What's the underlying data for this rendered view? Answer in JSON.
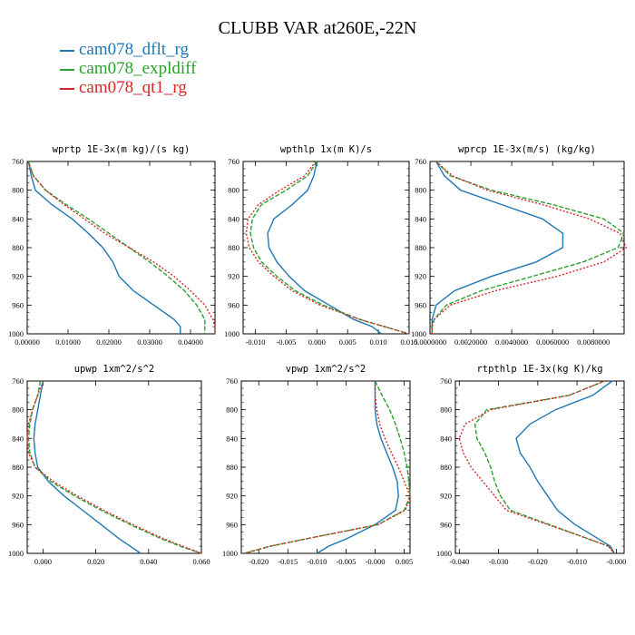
{
  "title": "CLUBB VAR at260E,-22N",
  "legend": [
    {
      "label": "cam078_dflt_rg",
      "color": "#1f77b4"
    },
    {
      "label": "cam078_expldiff",
      "color": "#2ca02c"
    },
    {
      "label": "cam078_qt1_rg",
      "color": "#d62728"
    }
  ],
  "chart_data": [
    {
      "type": "line",
      "title": "wprtp  1E-3x(m kg)/(s kg)",
      "xlim": [
        0.0,
        0.046
      ],
      "ylim": [
        760,
        1000
      ],
      "xticks": [
        "0.00000",
        "0.01000",
        "0.02000",
        "0.03000",
        "0.04000"
      ],
      "xtick_values": [
        0.0,
        0.01,
        0.02,
        0.03,
        0.04
      ],
      "yticks": [
        760,
        800,
        840,
        880,
        920,
        960,
        1000
      ],
      "y": [
        760,
        780,
        800,
        820,
        840,
        860,
        880,
        900,
        920,
        940,
        960,
        980,
        990,
        1000
      ],
      "series": [
        {
          "name": "cam078_dflt_rg",
          "values": [
            0.0003,
            0.001,
            0.002,
            0.006,
            0.011,
            0.015,
            0.0185,
            0.021,
            0.0225,
            0.026,
            0.031,
            0.036,
            0.0375,
            0.0375
          ]
        },
        {
          "name": "cam078_expldiff",
          "values": [
            0.0003,
            0.0015,
            0.0045,
            0.0095,
            0.015,
            0.02,
            0.025,
            0.03,
            0.0345,
            0.0385,
            0.0415,
            0.0435,
            0.0435,
            0.0435
          ]
        },
        {
          "name": "cam078_qt1_rg",
          "values": [
            0.0002,
            0.0015,
            0.0045,
            0.009,
            0.014,
            0.019,
            0.025,
            0.031,
            0.036,
            0.04,
            0.0435,
            0.0455,
            0.046,
            0.046
          ]
        }
      ]
    },
    {
      "type": "line",
      "title": "wpthlp  1x(m K)/s",
      "xlim": [
        -0.012,
        0.015
      ],
      "ylim": [
        760,
        1000
      ],
      "xticks": [
        "-0.010",
        "-0.005",
        "0.000",
        "0.005",
        "0.010",
        "0.015"
      ],
      "xtick_values": [
        -0.01,
        -0.005,
        0.0,
        0.005,
        0.01,
        0.015
      ],
      "yticks": [
        760,
        800,
        840,
        880,
        920,
        960,
        1000
      ],
      "y": [
        760,
        780,
        800,
        820,
        840,
        860,
        880,
        900,
        920,
        940,
        960,
        980,
        990,
        1000
      ],
      "series": [
        {
          "name": "cam078_dflt_rg",
          "values": [
            0.0,
            -0.0005,
            -0.0015,
            -0.004,
            -0.007,
            -0.008,
            -0.0078,
            -0.0065,
            -0.0045,
            -0.002,
            0.002,
            0.006,
            0.009,
            0.0105
          ]
        },
        {
          "name": "cam078_expldiff",
          "values": [
            0.0,
            -0.0015,
            -0.005,
            -0.009,
            -0.0105,
            -0.0108,
            -0.0103,
            -0.009,
            -0.0065,
            -0.0035,
            0.001,
            0.007,
            0.011,
            0.015
          ]
        },
        {
          "name": "cam078_qt1_rg",
          "values": [
            -0.0002,
            -0.002,
            -0.006,
            -0.0095,
            -0.0112,
            -0.0115,
            -0.011,
            -0.0095,
            -0.007,
            -0.004,
            0.0005,
            0.007,
            0.011,
            0.015
          ]
        }
      ]
    },
    {
      "type": "line",
      "title": "wprcp  1E-3x(m/s) (kg/kg)",
      "xlim": [
        0.0,
        0.0095
      ],
      "ylim": [
        760,
        1000
      ],
      "xticks": [
        "0.0000000",
        "0.0020000",
        "0.0040000",
        "0.0060000",
        "0.0080000"
      ],
      "xtick_values": [
        0.0,
        0.002,
        0.004,
        0.006,
        0.008
      ],
      "yticks": [
        760,
        800,
        840,
        880,
        920,
        960,
        1000
      ],
      "y": [
        760,
        780,
        800,
        820,
        840,
        860,
        880,
        900,
        920,
        940,
        960,
        980,
        990,
        1000
      ],
      "series": [
        {
          "name": "cam078_dflt_rg",
          "values": [
            0.0003,
            0.0007,
            0.0015,
            0.0035,
            0.0055,
            0.0065,
            0.0065,
            0.0052,
            0.003,
            0.0012,
            0.0003,
            0.0001,
            0.0001,
            0.0001
          ]
        },
        {
          "name": "cam078_expldiff",
          "values": [
            0.0003,
            0.001,
            0.003,
            0.006,
            0.0085,
            0.0095,
            0.0092,
            0.0075,
            0.005,
            0.0025,
            0.0008,
            0.0002,
            0.0001,
            0.0001
          ]
        },
        {
          "name": "cam078_qt1_rg",
          "values": [
            0.0003,
            0.0011,
            0.0028,
            0.0055,
            0.0078,
            0.0093,
            0.0096,
            0.0085,
            0.0062,
            0.0032,
            0.001,
            0.0002,
            0.0001,
            0.0001
          ]
        }
      ]
    },
    {
      "type": "line",
      "title": "upwp  1xm^2/s^2",
      "xlim": [
        -0.006,
        0.06
      ],
      "ylim": [
        760,
        1000
      ],
      "xticks": [
        "0.000",
        "0.020",
        "0.040",
        "0.060"
      ],
      "xtick_values": [
        0.0,
        0.02,
        0.04,
        0.06
      ],
      "yticks": [
        760,
        800,
        840,
        880,
        920,
        960,
        1000
      ],
      "y": [
        760,
        780,
        800,
        820,
        840,
        860,
        880,
        900,
        920,
        940,
        960,
        980,
        990,
        1000
      ],
      "series": [
        {
          "name": "cam078_dflt_rg",
          "values": [
            0.0,
            -0.001,
            -0.002,
            -0.003,
            -0.0035,
            -0.003,
            -0.002,
            0.002,
            0.008,
            0.015,
            0.022,
            0.029,
            0.033,
            0.037
          ]
        },
        {
          "name": "cam078_expldiff",
          "values": [
            -0.001,
            -0.002,
            -0.004,
            -0.005,
            -0.0055,
            -0.005,
            -0.003,
            0.003,
            0.012,
            0.022,
            0.033,
            0.045,
            0.052,
            0.06
          ]
        },
        {
          "name": "cam078_qt1_rg",
          "values": [
            0.0,
            -0.002,
            -0.004,
            -0.0055,
            -0.006,
            -0.0055,
            -0.003,
            0.004,
            0.013,
            0.023,
            0.034,
            0.046,
            0.053,
            0.06
          ]
        }
      ]
    },
    {
      "type": "line",
      "title": "vpwp  1xm^2/s^2",
      "xlim": [
        -0.023,
        0.006
      ],
      "ylim": [
        760,
        1000
      ],
      "xticks": [
        "-0.020",
        "-0.015",
        "-0.010",
        "-0.005",
        "-0.000",
        "0.005"
      ],
      "xtick_values": [
        -0.02,
        -0.015,
        -0.01,
        -0.005,
        0.0,
        0.005
      ],
      "yticks": [
        760,
        800,
        840,
        880,
        920,
        960,
        1000
      ],
      "y": [
        760,
        780,
        800,
        820,
        840,
        860,
        880,
        900,
        920,
        940,
        960,
        980,
        990,
        1000
      ],
      "series": [
        {
          "name": "cam078_dflt_rg",
          "values": [
            0.0,
            0.0,
            0.0,
            0.0003,
            0.001,
            0.002,
            0.003,
            0.0038,
            0.004,
            0.0035,
            0.0,
            -0.005,
            -0.008,
            -0.01
          ]
        },
        {
          "name": "cam078_expldiff",
          "values": [
            0.0,
            0.0012,
            0.0025,
            0.0035,
            0.0043,
            0.005,
            0.0055,
            0.0058,
            0.006,
            0.005,
            0.0005,
            -0.012,
            -0.018,
            -0.0225
          ]
        },
        {
          "name": "cam078_qt1_rg",
          "values": [
            0.0,
            0.0,
            0.0003,
            0.0008,
            0.0017,
            0.0028,
            0.004,
            0.005,
            0.006,
            0.0052,
            0.0005,
            -0.012,
            -0.018,
            -0.0225
          ]
        }
      ]
    },
    {
      "type": "line",
      "title": "rtpthlp  1E-3x(kg K)/kg",
      "xlim": [
        -0.041,
        0.002
      ],
      "ylim": [
        760,
        1000
      ],
      "xticks": [
        "-0.040",
        "-0.030",
        "-0.020",
        "-0.010",
        "-0.000"
      ],
      "xtick_values": [
        -0.04,
        -0.03,
        -0.02,
        -0.01,
        0.0
      ],
      "yticks": [
        760,
        800,
        840,
        880,
        920,
        960,
        1000
      ],
      "y": [
        760,
        780,
        800,
        820,
        840,
        860,
        880,
        900,
        920,
        940,
        960,
        980,
        990,
        1000
      ],
      "series": [
        {
          "name": "cam078_dflt_rg",
          "values": [
            -0.001,
            -0.006,
            -0.0155,
            -0.022,
            -0.0255,
            -0.0245,
            -0.022,
            -0.02,
            -0.0175,
            -0.015,
            -0.0105,
            -0.0045,
            -0.0015,
            -0.0005
          ]
        },
        {
          "name": "cam078_expldiff",
          "values": [
            -0.003,
            -0.012,
            -0.033,
            -0.036,
            -0.0355,
            -0.0335,
            -0.032,
            -0.031,
            -0.0295,
            -0.027,
            -0.017,
            -0.007,
            -0.002,
            -0.0005
          ]
        },
        {
          "name": "cam078_qt1_rg",
          "values": [
            -0.003,
            -0.012,
            -0.032,
            -0.0385,
            -0.04,
            -0.039,
            -0.037,
            -0.034,
            -0.031,
            -0.028,
            -0.0175,
            -0.007,
            -0.002,
            -0.0005
          ]
        }
      ]
    }
  ]
}
